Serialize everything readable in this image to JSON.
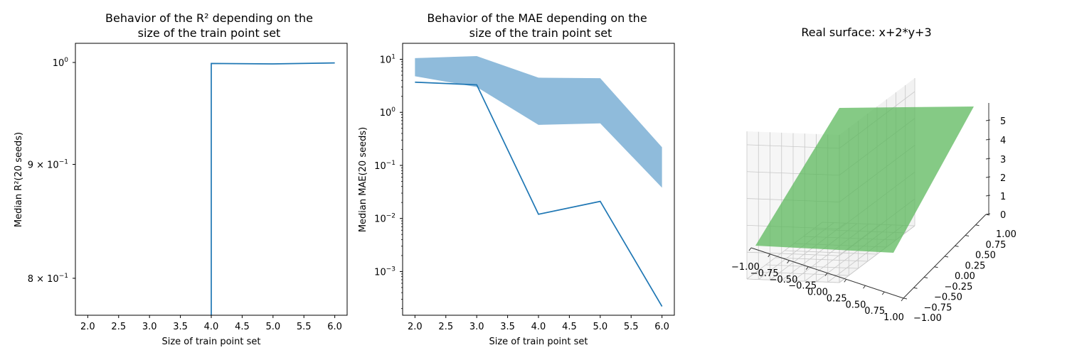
{
  "chart_data": [
    {
      "type": "line",
      "title_lines": [
        "Behavior of the R² depending on the",
        "size of the train point set"
      ],
      "xlabel": "Size of train point set",
      "ylabel": "Median R²(20 seeds)",
      "yscale": "log",
      "xlim": [
        1.8,
        6.2
      ],
      "ylim": [
        0.77,
        1.02
      ],
      "x_ticks": [
        "2.0",
        "2.5",
        "3.0",
        "3.5",
        "4.0",
        "4.5",
        "5.0",
        "5.5",
        "6.0"
      ],
      "y_ticks": [
        {
          "value": 1.0,
          "base": "10",
          "exp": "0"
        },
        {
          "value": 0.9,
          "base": "9 × 10",
          "exp": "−1"
        },
        {
          "value": 0.8,
          "base": "8 × 10",
          "exp": "−1"
        }
      ],
      "series": [
        {
          "color": "#1f77b4",
          "x": [
            4.0,
            4.0,
            5.0,
            6.0
          ],
          "y": [
            0.77,
            0.999,
            0.9985,
            0.9995
          ]
        }
      ]
    },
    {
      "type": "line",
      "title_lines": [
        "Behavior of the MAE depending on the",
        "size of the train point set"
      ],
      "xlabel": "Size of train point set",
      "ylabel": "Median MAE(20 seeds)",
      "yscale": "log",
      "xlim": [
        1.8,
        6.2
      ],
      "ylim": [
        0.00015,
        20
      ],
      "x_ticks": [
        "2.0",
        "2.5",
        "3.0",
        "3.5",
        "4.0",
        "4.5",
        "5.0",
        "5.5",
        "6.0"
      ],
      "y_ticks": [
        {
          "value": 10,
          "base": "10",
          "exp": "1"
        },
        {
          "value": 1,
          "base": "10",
          "exp": "0"
        },
        {
          "value": 0.1,
          "base": "10",
          "exp": "−1"
        },
        {
          "value": 0.01,
          "base": "10",
          "exp": "−2"
        },
        {
          "value": 0.001,
          "base": "10",
          "exp": "−3"
        }
      ],
      "band": {
        "color": "#8fbbdb",
        "x": [
          2,
          3,
          4,
          5,
          6
        ],
        "lower": [
          4.8,
          3.0,
          0.58,
          0.62,
          0.038
        ],
        "upper": [
          10.5,
          11.5,
          4.5,
          4.4,
          0.22
        ]
      },
      "series": [
        {
          "color": "#1f77b4",
          "x": [
            2,
            3,
            4,
            5,
            6
          ],
          "y": [
            3.7,
            3.3,
            0.012,
            0.021,
            0.00022
          ]
        }
      ]
    },
    {
      "type": "surface",
      "title": "Real surface: x+2*y+3",
      "surface_color": "#5cb85c",
      "x_ticks": [
        "−1.00",
        "−0.75",
        "−0.50",
        "−0.25",
        "0.00",
        "0.25",
        "0.50",
        "0.75",
        "1.00"
      ],
      "y_ticks": [
        "−1.00",
        "−0.75",
        "−0.50",
        "−0.25",
        "0.00",
        "0.25",
        "0.50",
        "0.75",
        "1.00"
      ],
      "z_ticks": [
        "0",
        "1",
        "2",
        "3",
        "4",
        "5"
      ]
    }
  ]
}
